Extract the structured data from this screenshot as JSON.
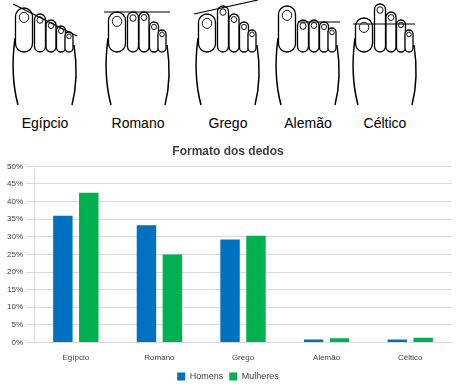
{
  "illustration": {
    "labels": [
      "Egípcio",
      "Romano",
      "Grego",
      "Alemão",
      "Céltico"
    ]
  },
  "chart_data": {
    "type": "bar",
    "title": "Formato dos dedos",
    "categories": [
      "Egípcio",
      "Romano",
      "Grego",
      "Alemão",
      "Céltico"
    ],
    "series": [
      {
        "name": "Homens",
        "color": "#0070c0",
        "values": [
          36,
          33.3,
          29.2,
          0.8,
          0.8
        ]
      },
      {
        "name": "Mulheres",
        "color": "#00b050",
        "values": [
          42.5,
          25,
          30.3,
          1.2,
          1.3
        ]
      }
    ],
    "ylim": [
      0,
      50
    ],
    "yticks": [
      {
        "value": 0,
        "label": "0%"
      },
      {
        "value": 5,
        "label": "5%"
      },
      {
        "value": 10,
        "label": "10%"
      },
      {
        "value": 15,
        "label": "15%"
      },
      {
        "value": 20,
        "label": "20%"
      },
      {
        "value": 25,
        "label": "25%"
      },
      {
        "value": 30,
        "label": "30%"
      },
      {
        "value": 35,
        "label": "35%"
      },
      {
        "value": 40,
        "label": "40%"
      },
      {
        "value": 45,
        "label": "45%"
      },
      {
        "value": 50,
        "label": "50%"
      }
    ],
    "grid": true,
    "legend": "bottom"
  }
}
